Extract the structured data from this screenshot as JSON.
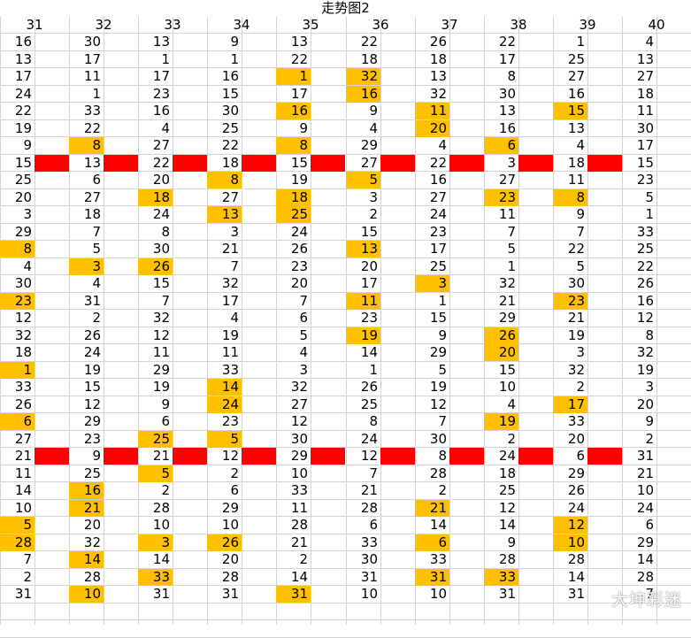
{
  "title": "走势图2",
  "columns": [
    "31",
    "32",
    "33",
    "34",
    "35",
    "36",
    "37",
    "38",
    "39",
    "40"
  ],
  "rows": [
    [
      "16",
      "30",
      "13",
      "9",
      "13",
      "22",
      "26",
      "22",
      "1",
      "4"
    ],
    [
      "13",
      "17",
      "1",
      "1",
      "22",
      "18",
      "18",
      "17",
      "25",
      "13"
    ],
    [
      "17",
      "11",
      "17",
      "16",
      "1",
      "32",
      "13",
      "8",
      "27",
      "27"
    ],
    [
      "24",
      "1",
      "23",
      "15",
      "17",
      "16",
      "32",
      "30",
      "16",
      "18"
    ],
    [
      "22",
      "33",
      "16",
      "30",
      "16",
      "9",
      "11",
      "13",
      "15",
      "11"
    ],
    [
      "19",
      "22",
      "4",
      "25",
      "9",
      "4",
      "20",
      "16",
      "13",
      "30"
    ],
    [
      "9",
      "8",
      "27",
      "22",
      "8",
      "29",
      "4",
      "6",
      "4",
      "17"
    ],
    [
      "15",
      "13",
      "22",
      "18",
      "15",
      "27",
      "22",
      "3",
      "18",
      "15"
    ],
    [
      "25",
      "6",
      "20",
      "8",
      "19",
      "5",
      "16",
      "27",
      "11",
      "23"
    ],
    [
      "20",
      "27",
      "18",
      "27",
      "18",
      "3",
      "27",
      "23",
      "8",
      "5"
    ],
    [
      "3",
      "18",
      "24",
      "13",
      "25",
      "2",
      "24",
      "11",
      "9",
      "1"
    ],
    [
      "29",
      "7",
      "8",
      "3",
      "24",
      "15",
      "23",
      "7",
      "7",
      "33"
    ],
    [
      "8",
      "5",
      "30",
      "21",
      "26",
      "13",
      "17",
      "5",
      "22",
      "25"
    ],
    [
      "4",
      "3",
      "26",
      "7",
      "23",
      "20",
      "25",
      "1",
      "5",
      "22"
    ],
    [
      "30",
      "4",
      "15",
      "32",
      "20",
      "17",
      "3",
      "32",
      "30",
      "26"
    ],
    [
      "23",
      "31",
      "7",
      "17",
      "7",
      "11",
      "1",
      "21",
      "23",
      "16"
    ],
    [
      "12",
      "2",
      "32",
      "4",
      "6",
      "23",
      "15",
      "29",
      "21",
      "12"
    ],
    [
      "32",
      "26",
      "12",
      "19",
      "5",
      "19",
      "9",
      "26",
      "19",
      "8"
    ],
    [
      "18",
      "24",
      "11",
      "11",
      "4",
      "14",
      "29",
      "20",
      "3",
      "32"
    ],
    [
      "1",
      "19",
      "29",
      "33",
      "3",
      "1",
      "5",
      "15",
      "32",
      "19"
    ],
    [
      "33",
      "15",
      "19",
      "14",
      "32",
      "26",
      "19",
      "10",
      "2",
      "3"
    ],
    [
      "26",
      "12",
      "9",
      "24",
      "27",
      "25",
      "12",
      "4",
      "17",
      "20"
    ],
    [
      "6",
      "29",
      "6",
      "23",
      "12",
      "8",
      "7",
      "19",
      "33",
      "9"
    ],
    [
      "27",
      "23",
      "25",
      "5",
      "30",
      "24",
      "30",
      "2",
      "20",
      "2"
    ],
    [
      "21",
      "9",
      "21",
      "12",
      "29",
      "12",
      "8",
      "24",
      "6",
      "31"
    ],
    [
      "11",
      "25",
      "5",
      "2",
      "10",
      "7",
      "28",
      "18",
      "29",
      "21"
    ],
    [
      "14",
      "16",
      "2",
      "6",
      "33",
      "21",
      "2",
      "25",
      "26",
      "10"
    ],
    [
      "10",
      "21",
      "28",
      "29",
      "11",
      "28",
      "21",
      "12",
      "24",
      "24"
    ],
    [
      "5",
      "20",
      "10",
      "10",
      "28",
      "6",
      "14",
      "14",
      "12",
      "6"
    ],
    [
      "28",
      "32",
      "3",
      "26",
      "21",
      "33",
      "6",
      "9",
      "10",
      "29"
    ],
    [
      "7",
      "14",
      "14",
      "20",
      "2",
      "30",
      "33",
      "28",
      "28",
      "14"
    ],
    [
      "2",
      "28",
      "33",
      "28",
      "14",
      "31",
      "31",
      "33",
      "14",
      "28"
    ],
    [
      "31",
      "10",
      "31",
      "31",
      "31",
      "10",
      "10",
      "31",
      "31",
      "7"
    ]
  ],
  "highlights": [
    [
      2,
      4
    ],
    [
      2,
      5
    ],
    [
      3,
      5
    ],
    [
      4,
      4
    ],
    [
      4,
      6
    ],
    [
      4,
      8
    ],
    [
      5,
      6
    ],
    [
      6,
      1
    ],
    [
      6,
      4
    ],
    [
      6,
      7
    ],
    [
      8,
      3
    ],
    [
      8,
      5
    ],
    [
      9,
      2
    ],
    [
      9,
      4
    ],
    [
      9,
      7
    ],
    [
      9,
      8
    ],
    [
      10,
      3
    ],
    [
      10,
      4
    ],
    [
      12,
      0
    ],
    [
      12,
      5
    ],
    [
      13,
      1
    ],
    [
      13,
      2
    ],
    [
      14,
      6
    ],
    [
      15,
      0
    ],
    [
      15,
      5
    ],
    [
      15,
      8
    ],
    [
      17,
      5
    ],
    [
      17,
      7
    ],
    [
      18,
      7
    ],
    [
      19,
      0
    ],
    [
      20,
      3
    ],
    [
      21,
      3
    ],
    [
      21,
      8
    ],
    [
      22,
      0
    ],
    [
      22,
      7
    ],
    [
      23,
      2
    ],
    [
      23,
      3
    ],
    [
      25,
      2
    ],
    [
      26,
      1
    ],
    [
      27,
      1
    ],
    [
      27,
      6
    ],
    [
      28,
      0
    ],
    [
      28,
      8
    ],
    [
      29,
      0
    ],
    [
      29,
      2
    ],
    [
      29,
      3
    ],
    [
      29,
      6
    ],
    [
      29,
      8
    ],
    [
      30,
      1
    ],
    [
      31,
      2
    ],
    [
      31,
      6
    ],
    [
      31,
      7
    ],
    [
      32,
      1
    ],
    [
      32,
      4
    ]
  ],
  "highlight_color": "#FFC000",
  "bar_color": "#FF0000",
  "bar_rows": [
    7,
    24
  ],
  "watermark": "大坤彩迷"
}
